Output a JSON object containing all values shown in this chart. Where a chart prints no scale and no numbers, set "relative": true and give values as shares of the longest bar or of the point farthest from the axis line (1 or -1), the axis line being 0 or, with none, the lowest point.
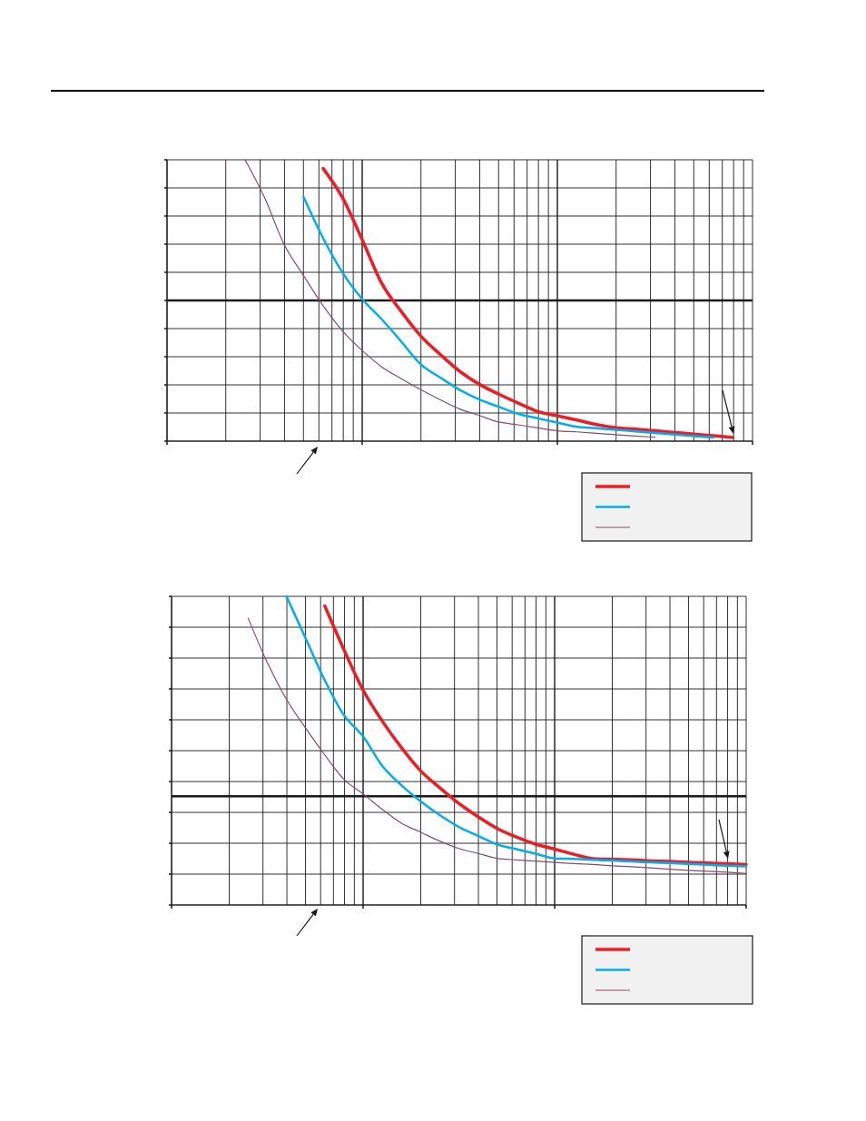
{
  "chart_data": [
    {
      "type": "line",
      "relative": true,
      "grid": true,
      "categories": [
        null,
        null,
        null,
        null,
        null,
        null,
        null,
        null,
        null,
        null,
        null,
        null,
        null,
        null,
        null,
        null,
        null,
        null,
        null,
        null,
        null,
        null,
        null,
        null,
        null,
        null,
        null,
        null,
        null,
        null,
        null
      ],
      "series": [
        {
          "color": "#ee1c25",
          "values": [
            null,
            null,
            null,
            null,
            null,
            null,
            null,
            null,
            0.969,
            0.864,
            0.716,
            0.561,
            0.461,
            0.374,
            0.308,
            0.248,
            0.202,
            0.167,
            0.135,
            0.105,
            0.09,
            0.075,
            0.059,
            0.048,
            0.043,
            0.037,
            0.031,
            0.025,
            0.019,
            0.013,
            null
          ]
        },
        {
          "color": "#00aeef",
          "values": [
            null,
            null,
            null,
            null,
            null,
            null,
            null,
            0.867,
            0.721,
            0.598,
            0.505,
            0.433,
            0.354,
            0.273,
            0.226,
            0.182,
            0.148,
            0.122,
            0.097,
            0.081,
            0.066,
            0.051,
            0.046,
            0.04,
            0.035,
            0.029,
            0.023,
            0.018,
            0.013,
            null,
            null
          ]
        },
        {
          "color": "#8b4a6b",
          "values": [
            null,
            null,
            null,
            null,
            1.0,
            0.865,
            0.699,
            0.588,
            0.481,
            0.391,
            0.322,
            0.264,
            0.222,
            0.183,
            0.147,
            0.114,
            0.091,
            0.068,
            0.058,
            0.047,
            0.037,
            0.033,
            0.028,
            0.023,
            0.018,
            0.014,
            null,
            null,
            null,
            null,
            null
          ]
        }
      ],
      "ref_lines": [
        {
          "axis": "y",
          "value": 0.5,
          "color": "#1a1a1a"
        }
      ]
    },
    {
      "type": "line",
      "relative": true,
      "grid": true,
      "categories": [
        null,
        null,
        null,
        null,
        null,
        null,
        null,
        null,
        null,
        null,
        null,
        null,
        null,
        null,
        null,
        null,
        null,
        null,
        null,
        null,
        null,
        null,
        null,
        null,
        null,
        null,
        null,
        null,
        null,
        null,
        null
      ],
      "series": [
        {
          "color": "#ee1c25",
          "values": [
            null,
            null,
            null,
            null,
            null,
            null,
            null,
            null,
            0.969,
            0.827,
            0.696,
            0.596,
            0.51,
            0.435,
            0.38,
            0.329,
            0.286,
            0.248,
            0.22,
            0.197,
            0.181,
            0.164,
            0.15,
            0.148,
            0.146,
            0.143,
            0.141,
            0.138,
            0.136,
            0.134,
            0.131
          ]
        },
        {
          "color": "#00aeef",
          "values": [
            null,
            null,
            null,
            null,
            null,
            null,
            1.0,
            0.864,
            0.728,
            0.615,
            0.546,
            0.451,
            0.388,
            0.336,
            0.291,
            0.253,
            0.224,
            0.196,
            0.181,
            0.166,
            0.151,
            0.149,
            0.146,
            0.144,
            0.141,
            0.138,
            0.136,
            0.133,
            0.13,
            0.127,
            0.125
          ]
        },
        {
          "color": "#8b4a6b",
          "values": [
            null,
            null,
            null,
            null,
            0.929,
            0.785,
            0.666,
            0.573,
            0.486,
            0.407,
            0.36,
            0.31,
            0.265,
            0.236,
            0.207,
            0.183,
            0.167,
            0.151,
            0.146,
            0.142,
            0.138,
            0.134,
            0.131,
            0.127,
            0.124,
            0.12,
            0.116,
            0.112,
            0.109,
            0.106,
            0.102
          ]
        }
      ],
      "ref_lines": [
        {
          "axis": "y",
          "value": 0.352,
          "color": "#1a1a1a"
        }
      ]
    }
  ]
}
